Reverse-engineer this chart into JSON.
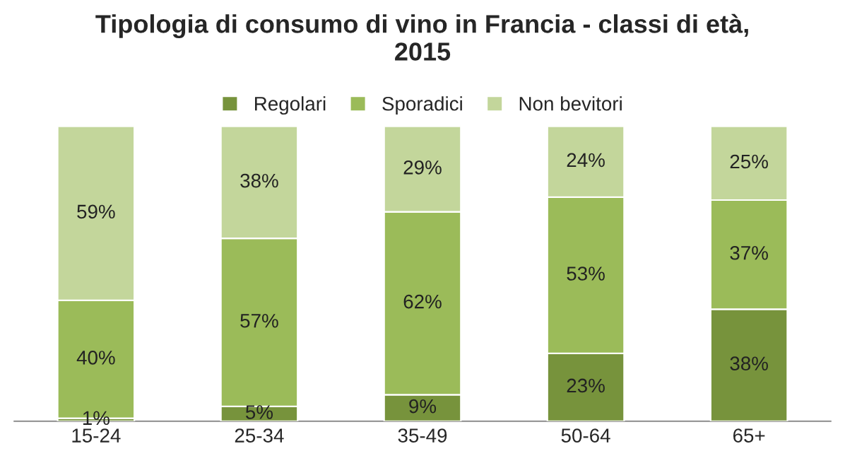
{
  "chart_data": {
    "type": "bar",
    "title": "Tipologia di consumo di vino in Francia - classi di età,\n2015",
    "categories": [
      "15-24",
      "25-34",
      "35-49",
      "50-64",
      "65+"
    ],
    "stacked": true,
    "legend": "top",
    "grid": false,
    "series": [
      {
        "name": "Regolari",
        "color": "#77933c",
        "values": [
          1,
          5,
          9,
          23,
          38
        ],
        "value_labels": [
          "1%",
          "5%",
          "9%",
          "23%",
          "38%"
        ]
      },
      {
        "name": "Sporadici",
        "color": "#9bbb59",
        "values": [
          40,
          57,
          62,
          53,
          37
        ],
        "value_labels": [
          "40%",
          "57%",
          "62%",
          "53%",
          "37%"
        ]
      },
      {
        "name": "Non bevitori",
        "color": "#c3d69b",
        "values": [
          59,
          38,
          29,
          24,
          25
        ],
        "value_labels": [
          "59%",
          "38%",
          "29%",
          "24%",
          "25%"
        ]
      }
    ]
  }
}
